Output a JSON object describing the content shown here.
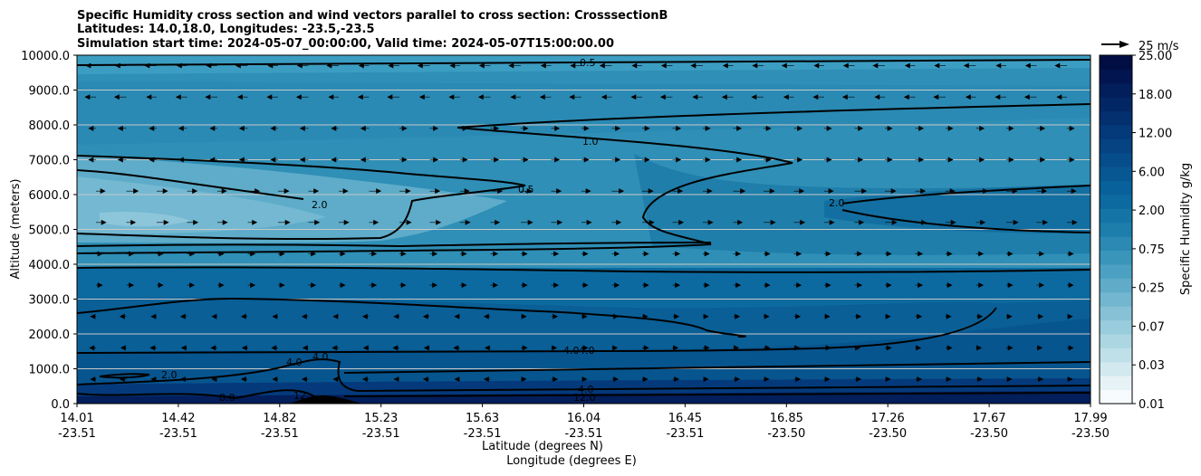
{
  "chart_data": {
    "type": "contour",
    "title_lines": [
      "Specific Humidity cross section and wind vectors parallel to cross section: CrosssectionB",
      "Latitudes: 14.0,18.0, Longitudes: -23.5,-23.5",
      "Simulation start time: 2024-05-07_00:00:00, Valid time: 2024-05-07T15:00:00.00"
    ],
    "ylabel": "Altitude (meters)",
    "xlabel_lat": "Latitude (degrees N)",
    "xlabel_lon": "Longitude (degrees E)",
    "ylim": [
      0,
      10000
    ],
    "y_ticks": [
      "0.0",
      "1000.0",
      "2000.0",
      "3000.0",
      "4000.0",
      "5000.0",
      "6000.0",
      "7000.0",
      "8000.0",
      "9000.0",
      "10000.0"
    ],
    "x_ticks": [
      {
        "lat": "14.01",
        "lon": "-23.51"
      },
      {
        "lat": "14.42",
        "lon": "-23.51"
      },
      {
        "lat": "14.82",
        "lon": "-23.51"
      },
      {
        "lat": "15.23",
        "lon": "-23.51"
      },
      {
        "lat": "15.63",
        "lon": "-23.51"
      },
      {
        "lat": "16.04",
        "lon": "-23.51"
      },
      {
        "lat": "16.45",
        "lon": "-23.51"
      },
      {
        "lat": "16.85",
        "lon": "-23.50"
      },
      {
        "lat": "17.26",
        "lon": "-23.50"
      },
      {
        "lat": "17.67",
        "lon": "-23.50"
      },
      {
        "lat": "17.99",
        "lon": "-23.50"
      }
    ],
    "colorbar": {
      "label": "Specific Humidity g/kg",
      "ticks": [
        "0.01",
        "0.03",
        "0.07",
        "0.25",
        "0.75",
        "2.00",
        "6.00",
        "12.00",
        "18.00",
        "25.00"
      ],
      "colors": [
        "#f7fbfd",
        "#e6f2f5",
        "#d2e9ef",
        "#bfe0e9",
        "#acd6e2",
        "#99ccdc",
        "#86c1d5",
        "#72b6cf",
        "#5fabc8",
        "#4ca0c1",
        "#3a95ba",
        "#2b89b3",
        "#1d7eac",
        "#1474a6",
        "#0d6aa0",
        "#08619a",
        "#075793",
        "#064d8b",
        "#054383",
        "#04397a",
        "#043070",
        "#032765",
        "#021e5b",
        "#021550",
        "#010e44"
      ]
    },
    "quiver_key": {
      "label": "25 m/s"
    },
    "contour_labels": [
      "0.5",
      "0.5",
      "1.0",
      "2.0",
      "2.0",
      "4.0",
      "4.0",
      "4.0",
      "4.0",
      "4.0",
      "12.0",
      "2.0",
      "8.0",
      "12"
    ],
    "grid": "horizontal"
  }
}
